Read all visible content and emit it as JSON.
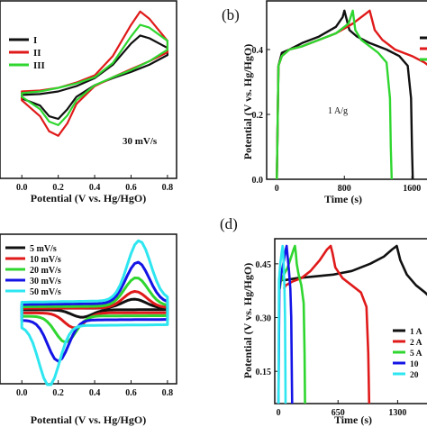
{
  "colors": {
    "black": "#111111",
    "red": "#e01a1a",
    "green": "#2fd62f",
    "blue": "#1414e6",
    "cyan": "#2ee6f0"
  },
  "chart_data": [
    {
      "id": "a",
      "panel_label": "",
      "type": "line",
      "title": "",
      "xlabel": "Potential (V vs. Hg/HgO)",
      "ylabel": "",
      "xlim": [
        -0.12,
        0.85
      ],
      "ylim": [
        -1,
        1
      ],
      "xticks": [
        "0.0",
        "0.2",
        "0.4",
        "0.6",
        "0.8"
      ],
      "xtick_values": [
        0.0,
        0.2,
        0.4,
        0.6,
        0.8
      ],
      "annotation": "30 mV/s",
      "legend": [
        "I",
        "II",
        "III"
      ],
      "legend_position": "top-left",
      "series": [
        {
          "name": "I",
          "color": "black",
          "x": [
            0.0,
            0.1,
            0.2,
            0.3,
            0.4,
            0.5,
            0.6,
            0.65,
            0.7,
            0.8,
            0.8,
            0.7,
            0.6,
            0.5,
            0.4,
            0.3,
            0.25,
            0.2,
            0.15,
            0.1,
            0.0
          ],
          "y": [
            -0.06,
            -0.05,
            -0.02,
            0.04,
            0.13,
            0.28,
            0.52,
            0.61,
            0.58,
            0.47,
            0.39,
            0.28,
            0.2,
            0.13,
            0.05,
            -0.08,
            -0.22,
            -0.33,
            -0.3,
            -0.18,
            -0.1
          ]
        },
        {
          "name": "II",
          "color": "red",
          "x": [
            0.0,
            0.1,
            0.2,
            0.3,
            0.4,
            0.5,
            0.6,
            0.65,
            0.7,
            0.8,
            0.8,
            0.7,
            0.6,
            0.5,
            0.4,
            0.3,
            0.25,
            0.2,
            0.15,
            0.1,
            0.0
          ],
          "y": [
            -0.02,
            -0.01,
            0.02,
            0.08,
            0.16,
            0.38,
            0.73,
            0.88,
            0.8,
            0.55,
            0.42,
            0.32,
            0.23,
            0.14,
            0.04,
            -0.16,
            -0.38,
            -0.52,
            -0.47,
            -0.3,
            -0.12
          ]
        },
        {
          "name": "III",
          "color": "green",
          "x": [
            0.0,
            0.1,
            0.2,
            0.3,
            0.4,
            0.5,
            0.6,
            0.65,
            0.7,
            0.8,
            0.8,
            0.7,
            0.6,
            0.5,
            0.4,
            0.3,
            0.25,
            0.2,
            0.15,
            0.1,
            0.0
          ],
          "y": [
            -0.04,
            -0.02,
            0.02,
            0.07,
            0.14,
            0.3,
            0.6,
            0.73,
            0.7,
            0.55,
            0.45,
            0.32,
            0.22,
            0.14,
            0.05,
            -0.12,
            -0.29,
            -0.4,
            -0.36,
            -0.22,
            -0.08
          ]
        }
      ]
    },
    {
      "id": "b",
      "panel_label": "(b)",
      "type": "line",
      "title": "",
      "xlabel": "Time (s)",
      "ylabel": "Potential (V vs. Hg/HgO)",
      "xlim": [
        -120,
        1800
      ],
      "ylim": [
        0,
        0.55
      ],
      "xticks": [
        "0",
        "800",
        "1600"
      ],
      "xtick_values": [
        0,
        800,
        1600
      ],
      "yticks": [
        "0.0",
        "0.2",
        "0.4"
      ],
      "ytick_values": [
        0.0,
        0.2,
        0.4
      ],
      "annotation": "1 A/g",
      "series": [
        {
          "name": "",
          "color": "black",
          "x": [
            0,
            20,
            60,
            150,
            300,
            500,
            700,
            780,
            800,
            860,
            950,
            1100,
            1300,
            1450,
            1550,
            1590,
            1600,
            1610
          ],
          "y": [
            0.0,
            0.35,
            0.39,
            0.4,
            0.42,
            0.44,
            0.47,
            0.5,
            0.52,
            0.46,
            0.44,
            0.42,
            0.4,
            0.38,
            0.35,
            0.25,
            0.1,
            0.0
          ]
        },
        {
          "name": "",
          "color": "red",
          "x": [
            0,
            20,
            60,
            150,
            300,
            500,
            700,
            900,
            1050,
            1100,
            1160,
            1250,
            1400,
            1600,
            1750,
            1800
          ],
          "y": [
            0.0,
            0.35,
            0.38,
            0.4,
            0.41,
            0.43,
            0.45,
            0.48,
            0.51,
            0.52,
            0.46,
            0.43,
            0.4,
            0.38,
            0.36,
            0.35
          ]
        },
        {
          "name": "",
          "color": "green",
          "x": [
            0,
            20,
            60,
            150,
            300,
            500,
            700,
            850,
            900,
            930,
            1000,
            1100,
            1200,
            1300,
            1340,
            1350,
            1360
          ],
          "y": [
            0.0,
            0.35,
            0.38,
            0.4,
            0.41,
            0.43,
            0.45,
            0.48,
            0.52,
            0.46,
            0.43,
            0.41,
            0.39,
            0.36,
            0.25,
            0.1,
            0.0
          ]
        }
      ]
    },
    {
      "id": "c",
      "panel_label": "",
      "type": "line",
      "title": "",
      "xlabel": "Potential (V vs. Hg/HgO)",
      "ylabel": "",
      "xlim": [
        -0.12,
        0.85
      ],
      "ylim": [
        -1,
        1
      ],
      "xticks": [
        "0.0",
        "0.2",
        "0.4",
        "0.6",
        "0.8"
      ],
      "xtick_values": [
        0.0,
        0.2,
        0.4,
        0.6,
        0.8
      ],
      "legend": [
        "5 mV/s",
        "10  mV/s",
        "20 mV/s",
        "30 mV/s",
        "50 mV/s"
      ],
      "legend_position": "top-left",
      "series": [
        {
          "name": "5 mV/s",
          "color": "black",
          "ox": 0.0,
          "rx": 0.41,
          "pk": 0.21,
          "ca": 0.33,
          "ph": 0.12,
          "pc": -0.1,
          "w": 0.01,
          "base": 0.0
        },
        {
          "name": "10  mV/s",
          "color": "red",
          "ox": 0.0,
          "rx": 0.38,
          "pk": 0.28,
          "ca": 0.29,
          "ph": 0.22,
          "pc": -0.2,
          "w": 0.03,
          "base": -0.02
        },
        {
          "name": "20 mV/s",
          "color": "green",
          "ox": 0.0,
          "rx": 0.37,
          "pk": 0.36,
          "ca": 0.24,
          "ph": 0.38,
          "pc": -0.35,
          "w": 0.06,
          "base": -0.03
        },
        {
          "name": "30 mV/s",
          "color": "blue",
          "ox": 0.0,
          "rx": 0.36,
          "pk": 0.45,
          "ca": 0.2,
          "ph": 0.55,
          "pc": -0.55,
          "w": 0.1,
          "base": -0.04
        },
        {
          "name": "50 mV/s",
          "color": "cyan",
          "ox": 0.0,
          "rx": 0.35,
          "pk": 0.55,
          "ca": 0.15,
          "ph": 0.8,
          "pc": -0.8,
          "w": 0.15,
          "base": -0.06
        }
      ]
    },
    {
      "id": "d",
      "panel_label": "(d)",
      "type": "line",
      "title": "",
      "xlabel": "Time (s)",
      "ylabel": "Potential (V vs. Hg/HgO)",
      "xlim": [
        -40,
        1640
      ],
      "ylim": [
        0.06,
        0.52
      ],
      "xticks": [
        "0",
        "650",
        "1300"
      ],
      "xtick_values": [
        0,
        650,
        1300
      ],
      "yticks": [
        "0.15",
        "0.30",
        "0.45"
      ],
      "ytick_values": [
        0.15,
        0.3,
        0.45
      ],
      "legend": [
        "1 A",
        "2 A",
        "5 A",
        "10",
        "20"
      ],
      "legend_position": "bottom-right",
      "series": [
        {
          "name": "1 A",
          "color": "black",
          "x": [
            0,
            30,
            80,
            200,
            400,
            600,
            800,
            1000,
            1150,
            1240,
            1290,
            1330,
            1400,
            1500,
            1600,
            1640
          ],
          "y": [
            0.41,
            0.405,
            0.405,
            0.41,
            0.415,
            0.42,
            0.43,
            0.45,
            0.47,
            0.49,
            0.5,
            0.46,
            0.42,
            0.39,
            0.37,
            0.36
          ]
        },
        {
          "name": "2 A",
          "color": "red",
          "x": [
            60,
            80,
            150,
            250,
            350,
            450,
            530,
            570,
            590,
            620,
            700,
            800,
            900,
            960,
            980,
            990
          ],
          "y": [
            0.38,
            0.39,
            0.4,
            0.41,
            0.43,
            0.46,
            0.49,
            0.5,
            0.48,
            0.44,
            0.41,
            0.39,
            0.37,
            0.33,
            0.2,
            0.06
          ]
        },
        {
          "name": "5 A",
          "color": "green",
          "x": [
            15,
            25,
            60,
            100,
            140,
            165,
            180,
            190,
            200,
            220,
            250,
            275,
            285,
            290
          ],
          "y": [
            0.38,
            0.4,
            0.42,
            0.44,
            0.47,
            0.49,
            0.5,
            0.48,
            0.45,
            0.42,
            0.39,
            0.34,
            0.2,
            0.06
          ]
        },
        {
          "name": "10",
          "color": "blue",
          "x": [
            0,
            10,
            30,
            60,
            80,
            90,
            100,
            115,
            130,
            140,
            146,
            150
          ],
          "y": [
            0.06,
            0.38,
            0.42,
            0.46,
            0.49,
            0.5,
            0.47,
            0.43,
            0.38,
            0.3,
            0.15,
            0.06
          ]
        },
        {
          "name": "20",
          "color": "cyan",
          "x": [
            0,
            6,
            20,
            35,
            45,
            50,
            58,
            66,
            72,
            76,
            78
          ],
          "y": [
            0.06,
            0.4,
            0.45,
            0.48,
            0.5,
            0.49,
            0.44,
            0.38,
            0.3,
            0.15,
            0.06
          ]
        }
      ]
    }
  ]
}
